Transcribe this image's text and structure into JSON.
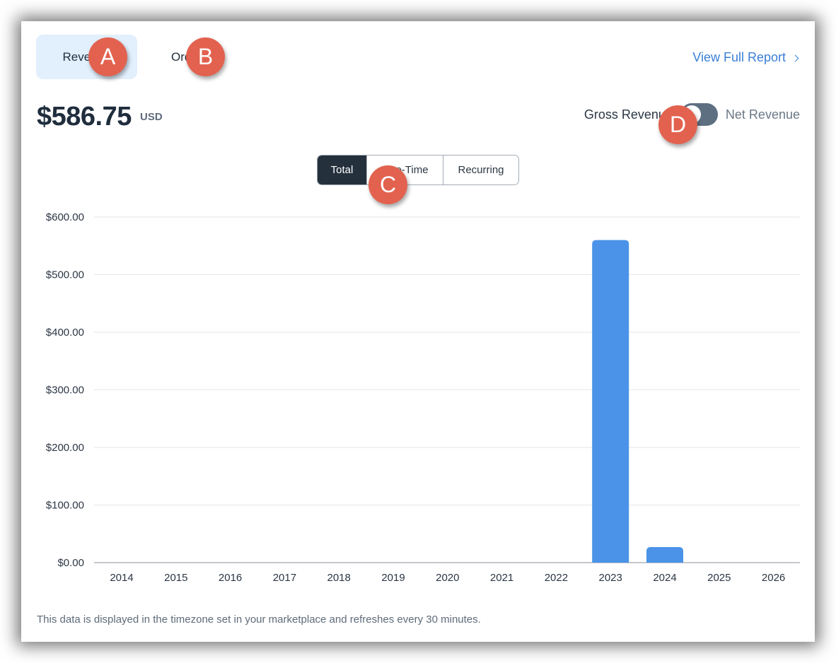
{
  "tabs": {
    "revenue_label": "Revenue",
    "orders_label": "Orders"
  },
  "header": {
    "view_report_label": "View Full Report",
    "amount": "$586.75",
    "currency": "USD"
  },
  "revenue_toggle": {
    "left_label": "Gross Revenue",
    "right_label": "Net Revenue",
    "selected": "Gross Revenue"
  },
  "segments": {
    "total": "Total",
    "one_time": "One-Time",
    "recurring": "Recurring",
    "selected": "Total"
  },
  "annotations": {
    "a": "A",
    "b": "B",
    "c": "C",
    "d": "D"
  },
  "chart_data": {
    "type": "bar",
    "categories": [
      "2014",
      "2015",
      "2016",
      "2017",
      "2018",
      "2019",
      "2020",
      "2021",
      "2022",
      "2023",
      "2024",
      "2025",
      "2026"
    ],
    "values": [
      0,
      0,
      0,
      0,
      0,
      0,
      0,
      0,
      0,
      560,
      27,
      0,
      0
    ],
    "ylim": [
      0,
      600
    ],
    "yticks": [
      "$0.00",
      "$100.00",
      "$200.00",
      "$300.00",
      "$400.00",
      "$500.00",
      "$600.00"
    ],
    "grid": true,
    "bar_color": "#4a93e8"
  },
  "footnote": "This data is displayed in the timezone set in your marketplace and refreshes every 30 minutes.",
  "colors": {
    "accent": "#3a7fd5",
    "tab_active_bg": "#e2effc",
    "segment_active_bg": "#25303d",
    "badge": "#e2624f"
  }
}
